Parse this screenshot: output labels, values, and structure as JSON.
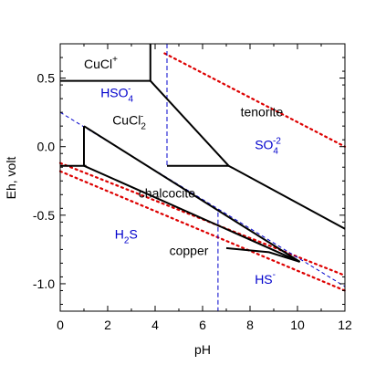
{
  "chart_data": {
    "type": "line",
    "title": "",
    "xlabel": "pH",
    "ylabel": "Eh, volt",
    "xlim": [
      0,
      12
    ],
    "ylim": [
      -1.2,
      0.75
    ],
    "x_ticks": [
      "0",
      "2",
      "4",
      "6",
      "8",
      "10",
      "12"
    ],
    "y_ticks": [
      "0.5",
      "0.0",
      "-0.5",
      "-1.0"
    ],
    "x_tick_values": [
      0,
      2,
      4,
      6,
      8,
      10,
      12
    ],
    "y_tick_values": [
      0.5,
      0.0,
      -0.5,
      -1.0
    ],
    "grid": false,
    "colors": {
      "boundary": "#000000",
      "water_limits": "#dd0000",
      "dashed_guides": "#0000cc",
      "aqueous_label": "#0000cc",
      "solid_label": "#000000"
    },
    "boundaries": [
      {
        "x": [
          0,
          3.8
        ],
        "y": [
          0.48,
          0.48
        ]
      },
      {
        "x": [
          3.8,
          3.8
        ],
        "y": [
          0.75,
          0.48
        ]
      },
      {
        "x": [
          3.8,
          7.1
        ],
        "y": [
          0.48,
          -0.14
        ]
      },
      {
        "x": [
          0,
          1.1
        ],
        "y": [
          -0.14,
          -0.14
        ]
      },
      {
        "x": [
          4.5,
          7.1
        ],
        "y": [
          -0.14,
          -0.14
        ]
      },
      {
        "x": [
          7.1,
          12
        ],
        "y": [
          -0.14,
          -0.6
        ]
      },
      {
        "x": [
          1.0,
          1.0
        ],
        "y": [
          0.15,
          -0.14
        ]
      },
      {
        "x": [
          1.0,
          10.1
        ],
        "y": [
          0.15,
          -0.84
        ]
      },
      {
        "x": [
          1.0,
          10.1
        ],
        "y": [
          -0.14,
          -0.84
        ]
      },
      {
        "x": [
          7.0,
          8.8,
          10.1
        ],
        "y": [
          -0.74,
          -0.77,
          -0.84
        ]
      }
    ],
    "water_limits": [
      {
        "x": [
          0,
          12
        ],
        "y": [
          -0.12,
          -0.94
        ]
      },
      {
        "x": [
          0,
          12
        ],
        "y": [
          -0.18,
          -1.05
        ]
      },
      {
        "x": [
          4.4,
          12
        ],
        "y": [
          0.68,
          0.0
        ]
      }
    ],
    "dashed_guides": [
      {
        "x": [
          4.5,
          4.5
        ],
        "y": [
          0.75,
          -0.14
        ]
      },
      {
        "x": [
          6.65,
          6.65
        ],
        "y": [
          -0.48,
          -1.2
        ]
      },
      {
        "x": [
          0,
          12
        ],
        "y": [
          0.25,
          -1.02
        ]
      }
    ],
    "labels": [
      {
        "text": "CuCl",
        "sup": "+",
        "sub": "",
        "x": 1.0,
        "y": 0.57,
        "kind": "solid"
      },
      {
        "text": "HSO",
        "sup": "",
        "sub": "4",
        "supb": "-",
        "x": 1.7,
        "y": 0.36,
        "kind": "aqueous"
      },
      {
        "text": "CuCl",
        "sup": "-",
        "sub": "2",
        "x": 2.2,
        "y": 0.16,
        "kind": "solid"
      },
      {
        "text": "tenorite",
        "sup": "",
        "sub": "",
        "x": 7.6,
        "y": 0.22,
        "kind": "solid"
      },
      {
        "text": "SO",
        "sup": "-2",
        "sub": "4",
        "x": 8.2,
        "y": -0.02,
        "kind": "aqueous"
      },
      {
        "text": "chalcocite",
        "sup": "",
        "sub": "",
        "x": 3.3,
        "y": -0.37,
        "kind": "solid"
      },
      {
        "text": "H",
        "sup": "",
        "sub": "2",
        "tail": "S",
        "x": 2.3,
        "y": -0.67,
        "kind": "aqueous"
      },
      {
        "text": "copper",
        "sup": "",
        "sub": "",
        "x": 4.6,
        "y": -0.79,
        "kind": "solid"
      },
      {
        "text": "HS",
        "sup": "-",
        "sub": "",
        "x": 8.2,
        "y": -1.0,
        "kind": "aqueous"
      }
    ]
  }
}
